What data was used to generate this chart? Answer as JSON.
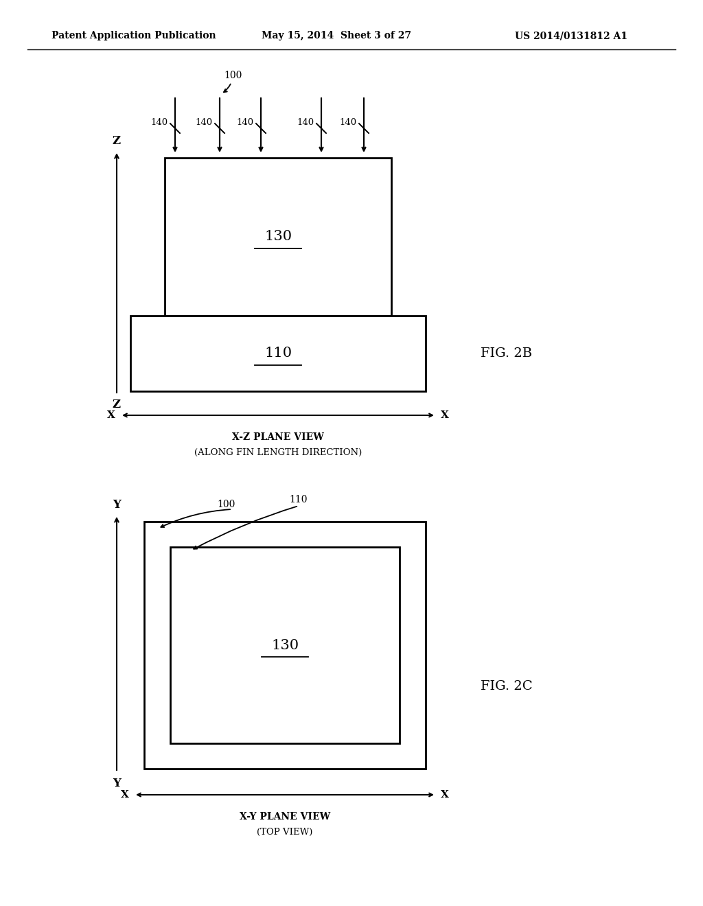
{
  "bg_color": "#ffffff",
  "header_left": "Patent Application Publication",
  "header_mid": "May 15, 2014  Sheet 3 of 27",
  "header_right": "US 2014/0131812 A1",
  "fig2b_label": "FIG. 2B",
  "fig2b_view1": "X-Z PLANE VIEW",
  "fig2b_view2": "(ALONG FIN LENGTH DIRECTION)",
  "fig2c_label": "FIG. 2C",
  "fig2c_view1": "X-Y PLANE VIEW",
  "fig2c_view2": "(TOP VIEW)",
  "label_100": "100",
  "label_110": "110",
  "label_130": "130",
  "label_140": "140",
  "label_X": "X",
  "label_Z": "Z",
  "label_Y": "Y"
}
